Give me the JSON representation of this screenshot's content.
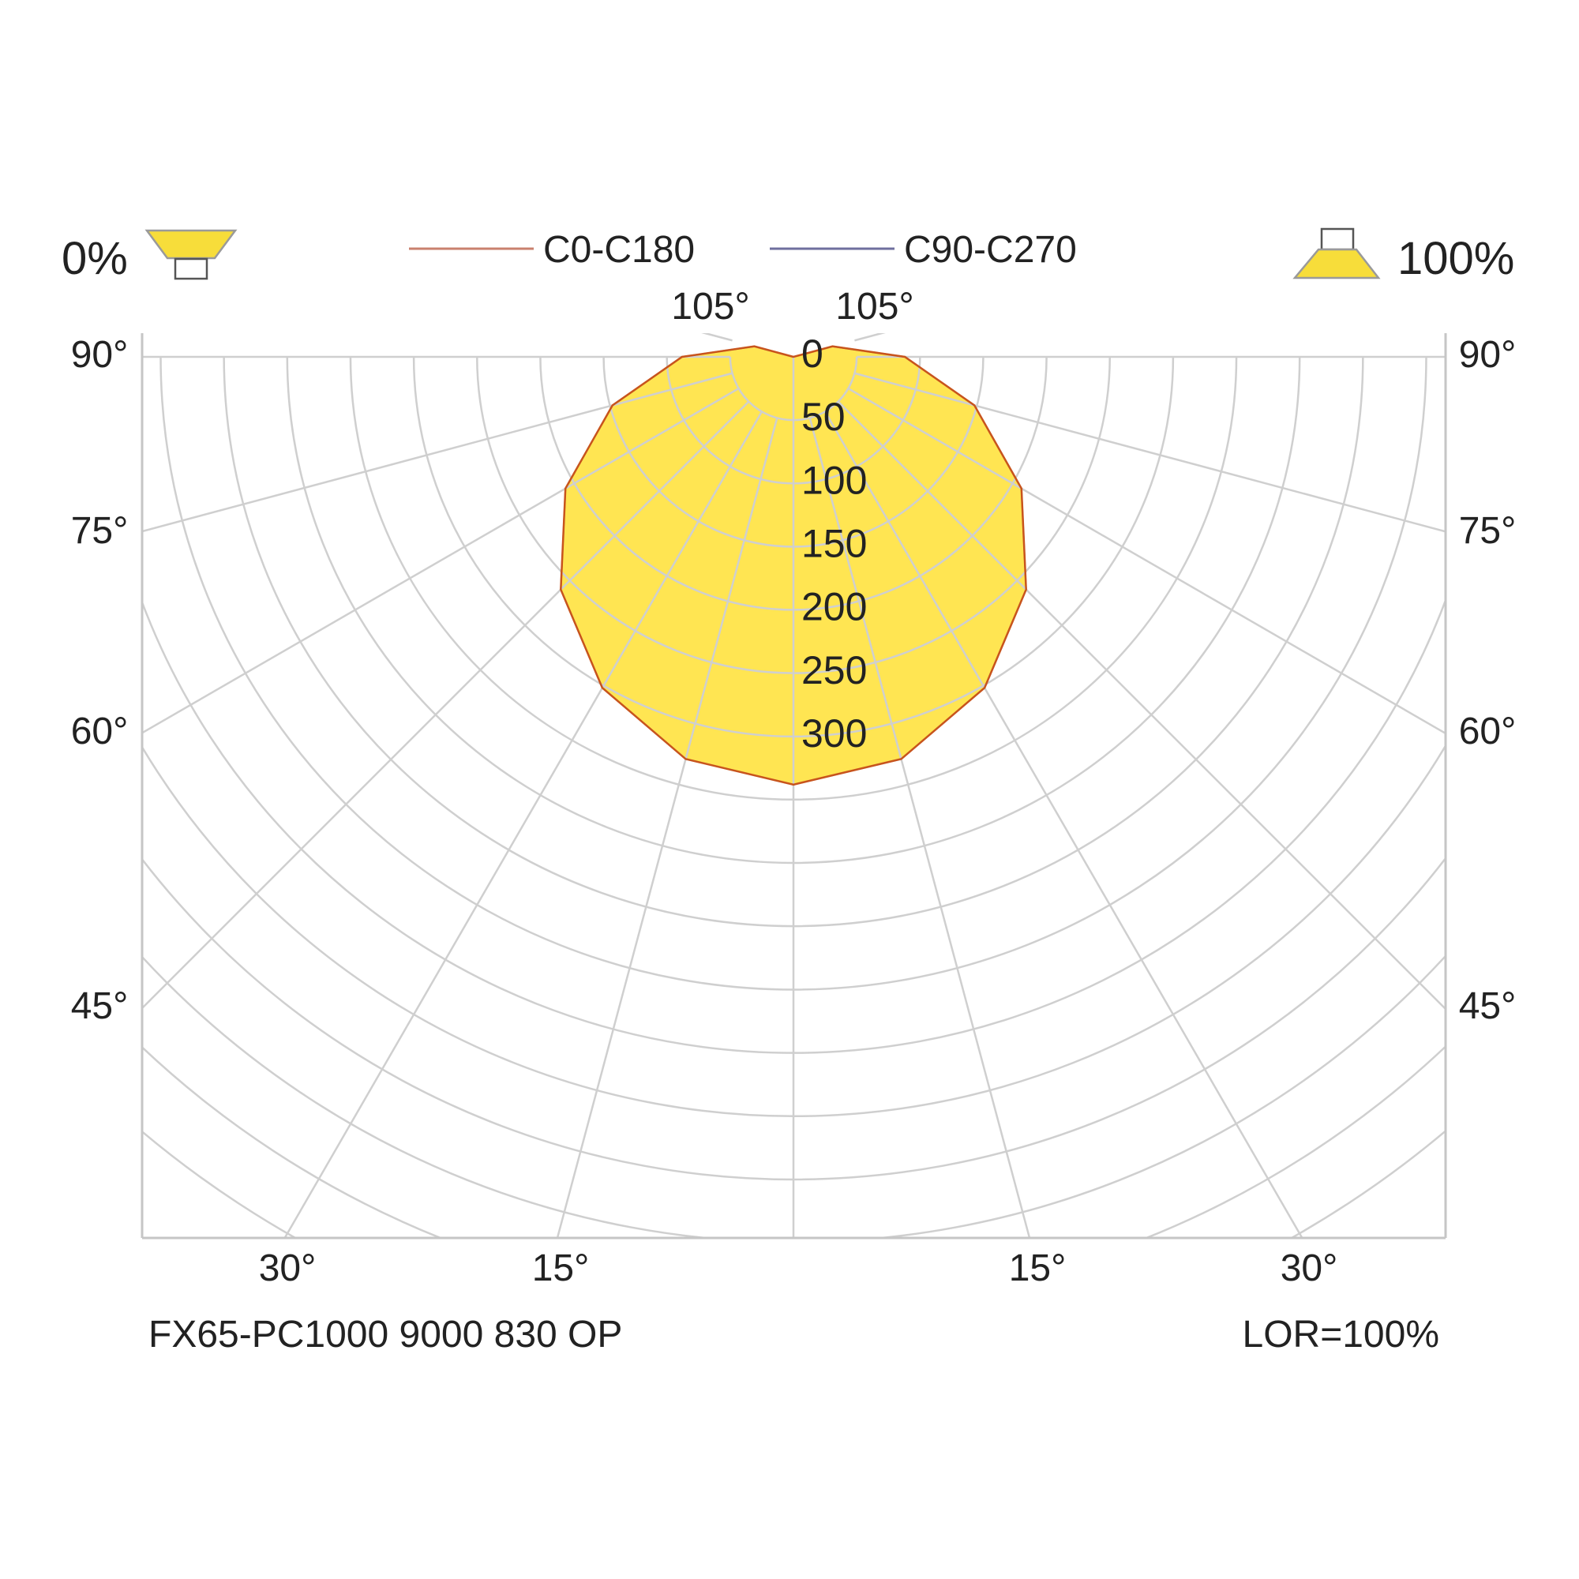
{
  "legend": {
    "left_percent": "0%",
    "right_percent": "100%",
    "series": [
      {
        "name": "C0-C180",
        "color": "#c9806e"
      },
      {
        "name": "C90-C270",
        "color": "#6f6f9e"
      }
    ]
  },
  "footer": {
    "product": "FX65-PC1000 9000 830 OP",
    "lor": "LOR=100%"
  },
  "colors": {
    "fill": "#ffe552",
    "curve": "#c8541c",
    "grid": "#cfcfcf",
    "frame": "#c6c6c6",
    "icon_fill": "#f7dd3a"
  },
  "chart_data": {
    "type": "polar",
    "radial_ticks": [
      0,
      50,
      100,
      150,
      200,
      250,
      300
    ],
    "radial_tick_labels": [
      "0",
      "50",
      "100",
      "150",
      "200",
      "250",
      "300"
    ],
    "angle_labels": {
      "top": [
        "105°",
        "105°"
      ],
      "left": [
        "90°",
        "75°",
        "60°",
        "45°"
      ],
      "right": [
        "90°",
        "75°",
        "60°",
        "45°"
      ],
      "bottom": [
        "30°",
        "15°",
        "15°",
        "30°"
      ]
    },
    "grid_angles": [
      15,
      30,
      45,
      60,
      75,
      90,
      105,
      120,
      135,
      150,
      165,
      180
    ],
    "grid": true,
    "series": [
      {
        "name": "C0-C180",
        "angles": [
          0,
          15,
          30,
          45,
          60,
          75,
          90,
          105,
          120,
          135,
          150,
          165,
          180
        ],
        "values": [
          338,
          329,
          302,
          260,
          208,
          148,
          88,
          32,
          0,
          0,
          0,
          0,
          0
        ]
      },
      {
        "name": "C90-C270",
        "angles": [
          0,
          15,
          30,
          45,
          60,
          75,
          90,
          105,
          120,
          135,
          150,
          165,
          180
        ],
        "values": [
          338,
          329,
          302,
          260,
          208,
          148,
          88,
          32,
          0,
          0,
          0,
          0,
          0
        ]
      }
    ]
  }
}
